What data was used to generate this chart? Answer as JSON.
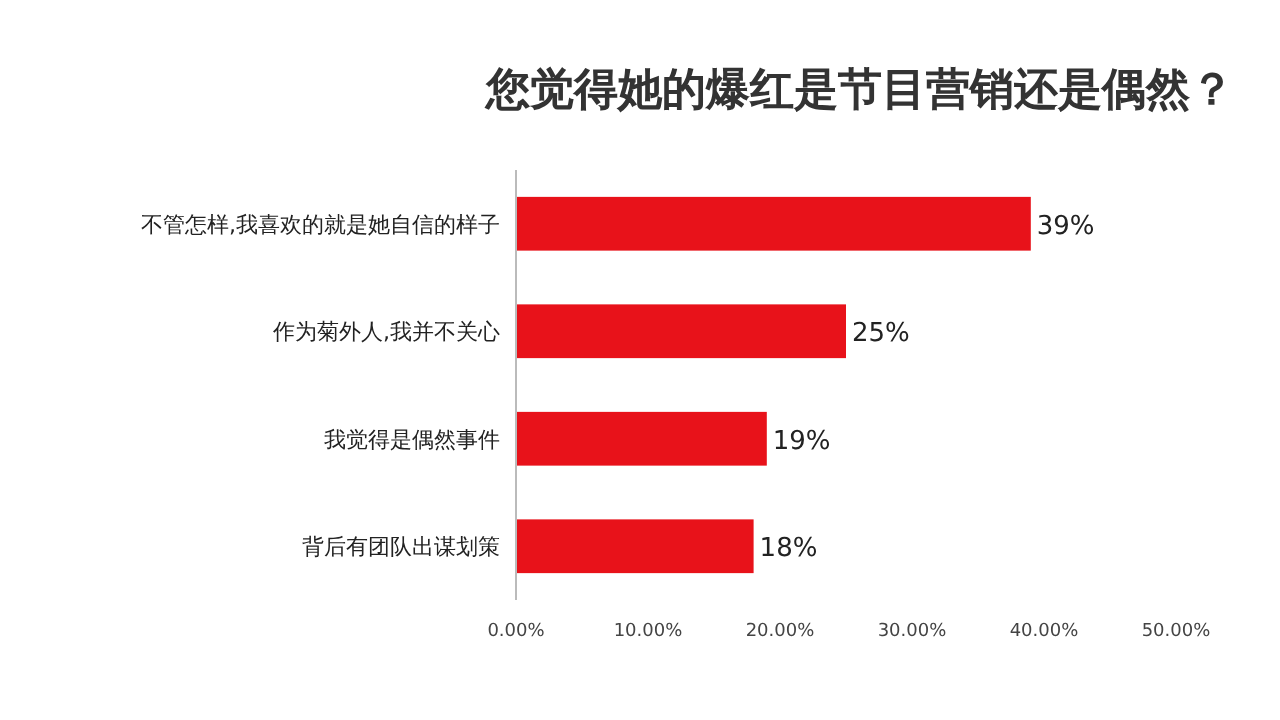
{
  "chart_data": {
    "type": "bar",
    "orientation": "horizontal",
    "title": "您觉得她的爆红是节目营销还是偶然？",
    "categories": [
      "不管怎样,我喜欢的就是她自信的样子",
      "作为菊外人,我并不关心",
      "我觉得是偶然事件",
      "背后有团队出谋划策"
    ],
    "values": [
      39,
      25,
      19,
      18
    ],
    "value_labels": [
      "39%",
      "25%",
      "19%",
      "18%"
    ],
    "color": "#e8121a",
    "xlim": [
      0,
      50
    ],
    "xticks": [
      {
        "value": 0,
        "label": "0.00%"
      },
      {
        "value": 10,
        "label": "10.00%"
      },
      {
        "value": 20,
        "label": "20.00%"
      },
      {
        "value": 30,
        "label": "30.00%"
      },
      {
        "value": 40,
        "label": "40.00%"
      },
      {
        "value": 50,
        "label": "50.00%"
      }
    ],
    "grid": false
  }
}
